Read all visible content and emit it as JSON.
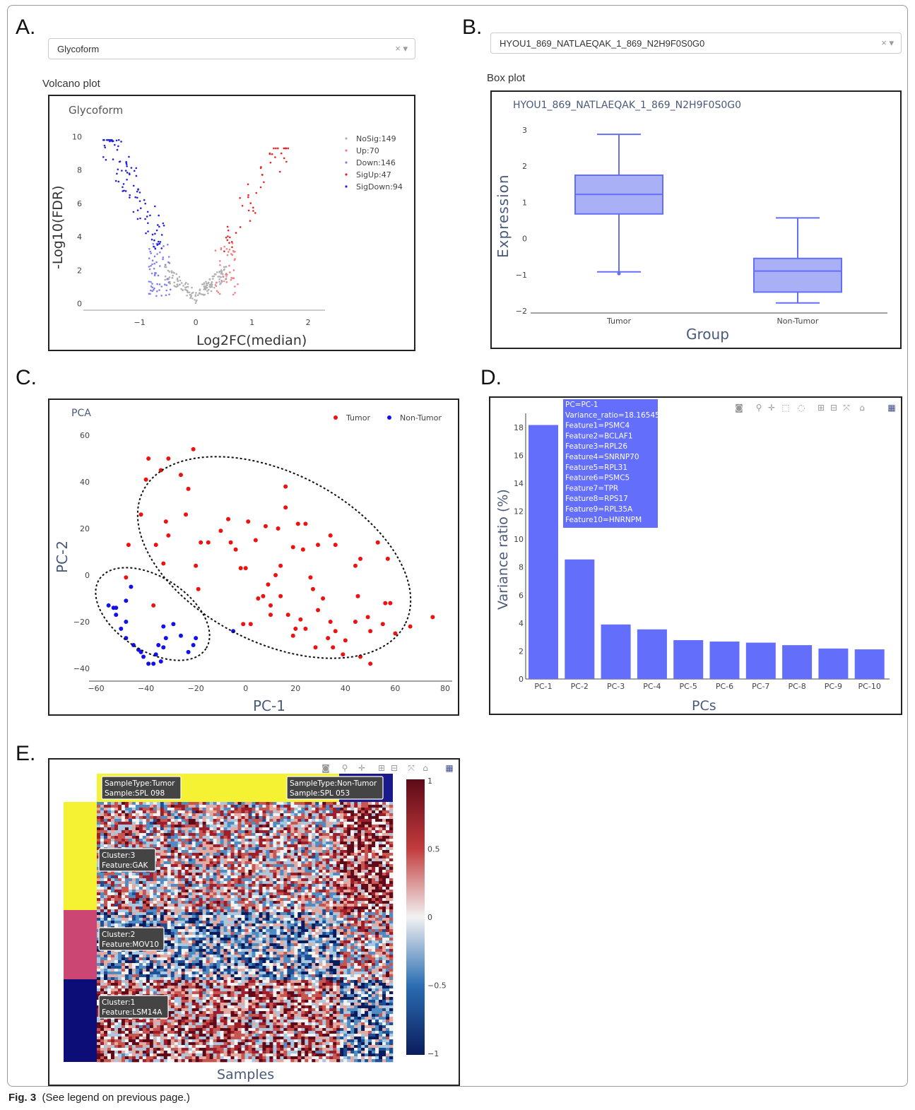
{
  "labels": {
    "a": "A.",
    "b": "B.",
    "c": "C.",
    "d": "D.",
    "e": "E."
  },
  "panelA": {
    "select_value": "Glycoform",
    "select_controls": "× ▾",
    "section_title": "Volcano plot",
    "chart_data": {
      "type": "scatter",
      "title": "Glycoform",
      "xlabel": "Log2FC(median)",
      "ylabel": "-Log10(FDR)",
      "xlim": [
        -2.0,
        2.3
      ],
      "ylim": [
        -0.4,
        10.4
      ],
      "xticks": [
        -1,
        0,
        1,
        2
      ],
      "yticks": [
        0,
        2,
        4,
        6,
        8,
        10
      ],
      "legend": [
        "NoSig:149",
        "Up:70",
        "Down:146",
        "SigUp:47",
        "SigDown:94"
      ],
      "colors": {
        "NoSig": "#b0b0b0",
        "Up": "#f08080",
        "Down": "#8080f0",
        "SigUp": "#ee2222",
        "SigDown": "#2222dd"
      }
    }
  },
  "panelB": {
    "select_value": "HYOU1_869_NATLAEQAK_1_869_N2H9F0S0G0",
    "select_controls": "× ▾",
    "section_title": "Box plot",
    "chart_data": {
      "type": "box",
      "title": "HYOU1_869_NATLAEQAK_1_869_N2H9F0S0G0",
      "xlabel": "Group",
      "ylabel": "Expression",
      "ylim": [
        -2.05,
        3.2
      ],
      "yticks": [
        -2,
        -1,
        0,
        1,
        2,
        3
      ],
      "categories": [
        "Tumor",
        "Non-Tumor"
      ],
      "boxes": [
        {
          "name": "Tumor",
          "min": -0.92,
          "q1": 0.68,
          "median": 1.22,
          "q3": 1.75,
          "max": 2.88,
          "outliers": [
            -0.97
          ]
        },
        {
          "name": "Non-Tumor",
          "min": -1.78,
          "q1": -1.48,
          "median": -0.9,
          "q3": -0.55,
          "max": 0.57,
          "outliers": []
        }
      ],
      "color": "#636efa"
    }
  },
  "panelC": {
    "chart_data": {
      "type": "scatter",
      "title": "PCA",
      "xlabel": "PC-1",
      "ylabel": "PC-2",
      "xlim": [
        -62,
        82
      ],
      "ylim": [
        -45,
        64
      ],
      "xticks": [
        -60,
        -40,
        -20,
        0,
        20,
        40,
        60,
        80
      ],
      "yticks": [
        -40,
        -20,
        0,
        20,
        40,
        60
      ],
      "series": [
        {
          "name": "Tumor",
          "color": "#ee1111",
          "points": [
            [
              -39,
              50
            ],
            [
              -31,
              50
            ],
            [
              -34,
              45
            ],
            [
              -40,
              41
            ],
            [
              -21,
              54
            ],
            [
              -26,
              43
            ],
            [
              -23,
              37
            ],
            [
              -42,
              26
            ],
            [
              -32,
              23
            ],
            [
              -31,
              17
            ],
            [
              -36,
              13
            ],
            [
              -47,
              13
            ],
            [
              -33,
              5
            ],
            [
              -20,
              4
            ],
            [
              -48,
              -1
            ],
            [
              -37,
              -13
            ],
            [
              -24,
              26
            ],
            [
              -18,
              14
            ],
            [
              4,
              15
            ],
            [
              1,
              23
            ],
            [
              8,
              21
            ],
            [
              13,
              20
            ],
            [
              16,
              29
            ],
            [
              16,
              38
            ],
            [
              19,
              12
            ],
            [
              21,
              22
            ],
            [
              24,
              22
            ],
            [
              14,
              4
            ],
            [
              23,
              11
            ],
            [
              12,
              0
            ],
            [
              26,
              -1
            ],
            [
              29,
              13
            ],
            [
              34,
              17
            ],
            [
              36,
              13
            ],
            [
              27,
              -6
            ],
            [
              31,
              -10
            ],
            [
              34,
              -20
            ],
            [
              44,
              4
            ],
            [
              46,
              7
            ],
            [
              45,
              -9
            ],
            [
              49,
              -18
            ],
            [
              55,
              -21
            ],
            [
              56,
              -12
            ],
            [
              53,
              14
            ],
            [
              57,
              7
            ],
            [
              58,
              -12
            ],
            [
              60,
              -25
            ],
            [
              66,
              -22
            ],
            [
              75,
              -18
            ],
            [
              50,
              -38
            ],
            [
              46,
              -35
            ],
            [
              33,
              -27
            ],
            [
              35,
              -31
            ],
            [
              22,
              -19
            ],
            [
              29,
              -15
            ],
            [
              24,
              -23
            ],
            [
              20,
              -23
            ],
            [
              14,
              -9
            ],
            [
              9,
              -4
            ],
            [
              10,
              -13
            ],
            [
              5,
              -10
            ],
            [
              -4,
              11
            ],
            [
              0,
              3
            ],
            [
              -6,
              14
            ],
            [
              -10,
              19
            ],
            [
              -15,
              14
            ],
            [
              -7,
              24
            ],
            [
              -2,
              3
            ],
            [
              7,
              -9
            ],
            [
              -1,
              -21
            ],
            [
              2,
              -21
            ],
            [
              10,
              -17
            ],
            [
              17,
              -17
            ],
            [
              19,
              -26
            ],
            [
              28,
              -31
            ],
            [
              40,
              -28
            ],
            [
              44,
              -20
            ],
            [
              50,
              -24
            ],
            [
              36,
              -24
            ],
            [
              39,
              -34
            ],
            [
              -19,
              -6
            ]
          ]
        },
        {
          "name": "Non-Tumor",
          "color": "#1111ee",
          "points": [
            [
              -55,
              -13
            ],
            [
              -53,
              -14
            ],
            [
              -52,
              -14
            ],
            [
              -48,
              -11
            ],
            [
              -52,
              -17
            ],
            [
              -48,
              -20
            ],
            [
              -50,
              -23
            ],
            [
              -48,
              -27
            ],
            [
              -45,
              -30
            ],
            [
              -43,
              -32
            ],
            [
              -42,
              -33
            ],
            [
              -41,
              -35
            ],
            [
              -39,
              -38
            ],
            [
              -37,
              -38
            ],
            [
              -36,
              -34
            ],
            [
              -34,
              -37
            ],
            [
              -33,
              -31
            ],
            [
              -35,
              -30
            ],
            [
              -32,
              -27
            ],
            [
              -33,
              -22
            ],
            [
              -29,
              -21
            ],
            [
              -26,
              -26
            ],
            [
              -23,
              -33
            ],
            [
              -21,
              -30
            ],
            [
              -46,
              -5
            ],
            [
              -20,
              -27
            ],
            [
              -5,
              -24
            ]
          ]
        }
      ]
    }
  },
  "panelD": {
    "chart_data": {
      "type": "bar",
      "xlabel": "PCs",
      "ylabel": "Variance ratio (%)",
      "ylim": [
        0,
        19.3
      ],
      "yticks": [
        0,
        2,
        4,
        6,
        8,
        10,
        12,
        14,
        16,
        18
      ],
      "categories": [
        "PC-1",
        "PC-2",
        "PC-3",
        "PC-4",
        "PC-5",
        "PC-6",
        "PC-7",
        "PC-8",
        "PC-9",
        "PC-10"
      ],
      "values": [
        18.16545,
        8.55,
        3.9,
        3.55,
        2.78,
        2.68,
        2.6,
        2.42,
        2.18,
        2.12
      ],
      "color": "#636efa"
    },
    "tooltip": [
      "PC=PC-1",
      "Variance_ratio=18.16545",
      "Feature1=PSMC4",
      "Feature2=BCLAF1",
      "Feature3=RPL26",
      "Feature4=SNRNP70",
      "Feature5=RPL31",
      "Feature6=PSMC5",
      "Feature7=TPR",
      "Feature8=RPS17",
      "Feature9=RPL35A",
      "Feature10=HNRNPM"
    ],
    "toolbar_icons": [
      "camera-icon",
      "zoom-icon",
      "pan-icon",
      "box-select-icon",
      "lasso-icon",
      "zoom-in-icon",
      "zoom-out-icon",
      "autoscale-icon",
      "home-icon",
      "plotly-logo-icon"
    ]
  },
  "panelE": {
    "chart_data": {
      "type": "heatmap",
      "xlabel": "Samples",
      "colorbar_ticks": [
        1,
        0.5,
        0,
        -0.5,
        -1
      ],
      "colorbar_labels": [
        "1",
        "0.5",
        "0",
        "−0.5",
        "−1"
      ],
      "colorscale": [
        "#0a1c5c",
        "#2a6db3",
        "#f2f2f2",
        "#c23b3b",
        "#5e0a18"
      ],
      "sample_groups": [
        {
          "name": "Tumor",
          "color": "#f4f232"
        },
        {
          "name": "Non-Tumor",
          "color": "#1a1a8c"
        }
      ],
      "row_clusters": [
        {
          "name": "3",
          "color": "#f4f232"
        },
        {
          "name": "2",
          "color": "#cc4673"
        },
        {
          "name": "1",
          "color": "#0d0d78"
        }
      ]
    },
    "tooltips": {
      "tumor": [
        "SampleType:Tumor",
        "Sample:SPL 098"
      ],
      "nontumor": [
        "SampleType:Non-Tumor",
        "Sample:SPL 053"
      ],
      "c3": [
        "Cluster:3",
        "Feature:GAK"
      ],
      "c2": [
        "Cluster:2",
        "Feature:MOV10"
      ],
      "c1": [
        "Cluster:1",
        "Feature:LSM14A"
      ]
    }
  },
  "caption": {
    "fig": "Fig. 3",
    "text": "(See legend on previous page.)"
  }
}
